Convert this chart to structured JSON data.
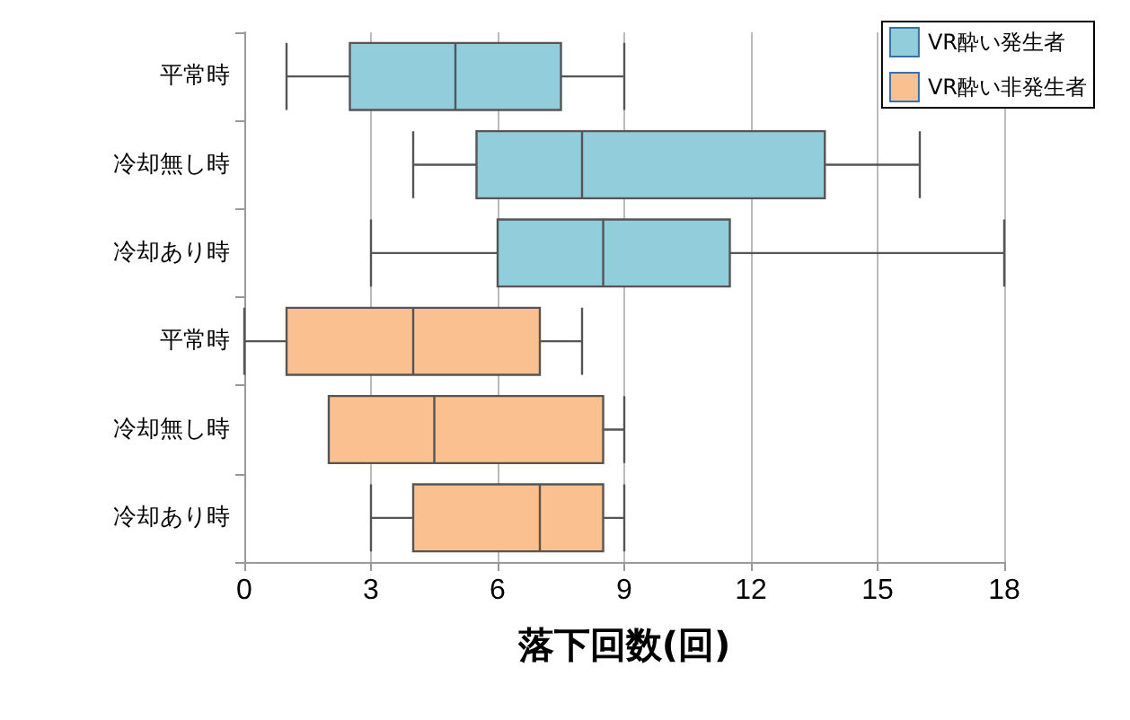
{
  "chart_data": {
    "type": "box",
    "orientation": "horizontal",
    "xlabel": "落下回数(回)",
    "categories": [
      "平常時",
      "冷却無し時",
      "冷却あり時",
      "平常時",
      "冷却無し時",
      "冷却あり時"
    ],
    "xlim": [
      0,
      18
    ],
    "xticks": [
      0,
      3,
      6,
      9,
      12,
      15,
      18
    ],
    "grid": "x",
    "legend": "top right",
    "series": [
      {
        "name": "VR酔い発生者",
        "color": "#92cddc",
        "boxes": [
          {
            "low": 1,
            "q1": 2.5,
            "median": 5,
            "q3": 7.5,
            "high": 9
          },
          {
            "low": 4,
            "q1": 5.5,
            "median": 8,
            "q3": 13.75,
            "high": 16
          },
          {
            "low": 3,
            "q1": 6,
            "median": 8.5,
            "q3": 11.5,
            "high": 18
          },
          null,
          null,
          null
        ]
      },
      {
        "name": "VR酔い非発生者",
        "color": "#fac090",
        "boxes": [
          null,
          null,
          null,
          {
            "low": 0,
            "q1": 1,
            "median": 4,
            "q3": 7,
            "high": 8
          },
          {
            "low": 2,
            "q1": 2,
            "median": 4.5,
            "q3": 8.5,
            "high": 9
          },
          {
            "low": 3,
            "q1": 4,
            "median": 7,
            "q3": 8.5,
            "high": 9
          }
        ]
      }
    ]
  }
}
